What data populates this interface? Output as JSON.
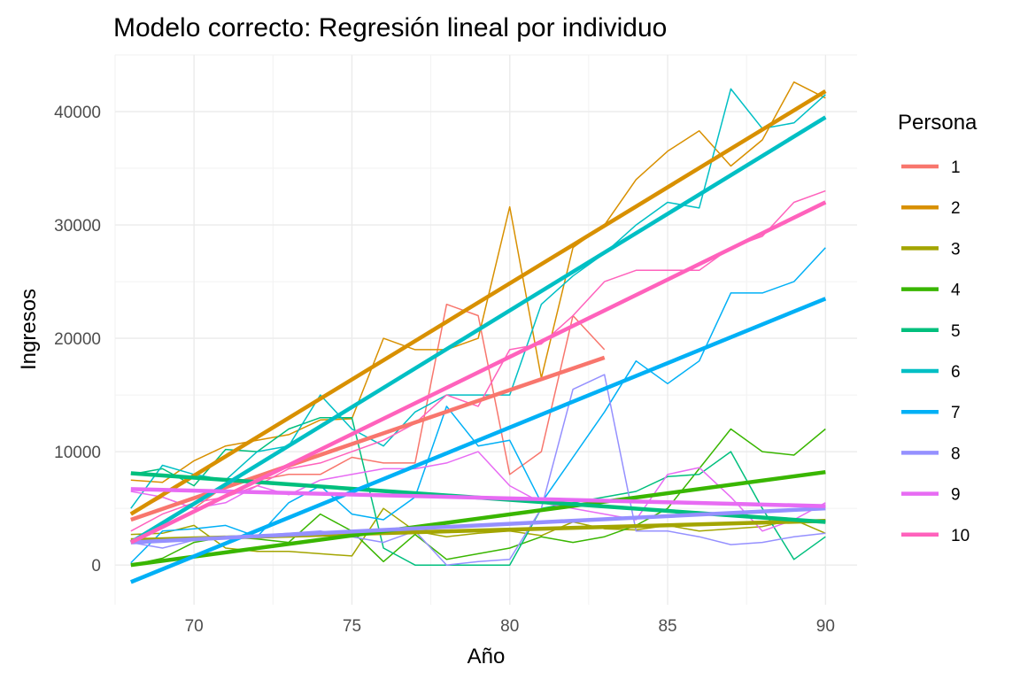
{
  "chart_data": {
    "type": "line",
    "title": "Modelo correcto: Regresión lineal por individuo",
    "xlabel": "Año",
    "ylabel": "Ingresos",
    "xlim": [
      67.5,
      91
    ],
    "ylim": [
      -3500,
      45000
    ],
    "x_ticks": [
      70,
      75,
      80,
      85,
      90
    ],
    "y_ticks": [
      0,
      10000,
      20000,
      30000,
      40000
    ],
    "grid": true,
    "legend": {
      "title": "Persona",
      "placement": "right"
    },
    "series": [
      {
        "name": "1",
        "color": "#F8766D",
        "x": [
          68,
          69,
          70,
          71,
          72,
          73,
          74,
          75,
          76,
          77,
          78,
          79,
          80,
          81,
          82,
          83
        ],
        "y": [
          4500,
          6000,
          5000,
          7000,
          7500,
          8000,
          8000,
          9500,
          9000,
          9000,
          23000,
          22000,
          8000,
          10000,
          22000,
          19000
        ],
        "fit": [
          [
            68,
            4000
          ],
          [
            83,
            18300
          ]
        ]
      },
      {
        "name": "2",
        "color": "#D89000",
        "x": [
          68,
          69,
          70,
          71,
          72,
          73,
          74,
          75,
          76,
          77,
          78,
          79,
          80,
          81,
          82,
          83,
          84,
          85,
          86,
          87,
          88,
          89,
          90
        ],
        "y": [
          7500,
          7300,
          9200,
          10500,
          11000,
          11500,
          12800,
          12900,
          20000,
          19000,
          19000,
          20000,
          31600,
          16500,
          28000,
          30000,
          34000,
          36500,
          38300,
          35200,
          37500,
          42600,
          41200
        ],
        "fit": [
          [
            68,
            4500
          ],
          [
            90,
            41800
          ]
        ]
      },
      {
        "name": "3",
        "color": "#A3A500",
        "x": [
          68,
          69,
          70,
          71,
          72,
          73,
          74,
          75,
          76,
          77,
          78,
          79,
          80,
          81,
          82,
          83,
          84,
          85,
          86,
          87,
          88,
          89,
          90
        ],
        "y": [
          2700,
          2800,
          3500,
          1500,
          1200,
          1200,
          1000,
          800,
          5000,
          3000,
          2500,
          2800,
          3000,
          2600,
          3800,
          3200,
          3100,
          3500,
          3000,
          3200,
          3400,
          4000,
          2800
        ],
        "fit": [
          [
            68,
            2200
          ],
          [
            90,
            3900
          ]
        ]
      },
      {
        "name": "4",
        "color": "#39B600",
        "x": [
          68,
          69,
          70,
          71,
          72,
          73,
          74,
          75,
          76,
          77,
          78,
          79,
          80,
          81,
          82,
          83,
          84,
          85,
          86,
          87,
          88,
          89,
          90
        ],
        "y": [
          0,
          600,
          2000,
          2500,
          2300,
          2000,
          4500,
          3000,
          300,
          2700,
          500,
          1000,
          1500,
          2500,
          2000,
          2500,
          3500,
          5000,
          8500,
          12000,
          10000,
          9700,
          12000
        ],
        "fit": [
          [
            68,
            0
          ],
          [
            90,
            8200
          ]
        ]
      },
      {
        "name": "5",
        "color": "#00BF7D",
        "x": [
          68,
          69,
          70,
          71,
          72,
          73,
          74,
          75,
          76,
          77,
          78,
          79,
          80,
          81,
          82,
          83,
          84,
          85,
          86,
          87,
          88,
          89,
          90
        ],
        "y": [
          8000,
          8500,
          7000,
          10200,
          10000,
          12000,
          13000,
          13000,
          1500,
          0,
          0,
          0,
          0,
          5000,
          5500,
          6000,
          6500,
          7800,
          8000,
          10000,
          5000,
          500,
          2500
        ],
        "fit": [
          [
            68,
            8100
          ],
          [
            90,
            3800
          ]
        ]
      },
      {
        "name": "6",
        "color": "#00BFC4",
        "x": [
          68,
          69,
          70,
          71,
          72,
          73,
          74,
          75,
          76,
          77,
          78,
          79,
          80,
          81,
          82,
          83,
          84,
          85,
          86,
          87,
          88,
          89,
          90
        ],
        "y": [
          5000,
          8800,
          8000,
          7500,
          10000,
          10500,
          15000,
          12000,
          10500,
          13500,
          15000,
          15000,
          15000,
          23000,
          25500,
          27500,
          30000,
          32000,
          31500,
          42000,
          38500,
          39000,
          41500
        ],
        "fit": [
          [
            68,
            2000
          ],
          [
            90,
            39500
          ]
        ]
      },
      {
        "name": "7",
        "color": "#00B0F6",
        "x": [
          68,
          69,
          70,
          71,
          72,
          73,
          74,
          75,
          76,
          77,
          78,
          79,
          80,
          81,
          82,
          83,
          84,
          85,
          86,
          87,
          88,
          89,
          90
        ],
        "y": [
          200,
          3000,
          3200,
          3500,
          2500,
          5500,
          7000,
          4500,
          4000,
          6000,
          14000,
          10500,
          11000,
          5500,
          9500,
          13500,
          18000,
          16000,
          18000,
          24000,
          24000,
          25000,
          28000
        ],
        "fit": [
          [
            68,
            -1500
          ],
          [
            90,
            23500
          ]
        ]
      },
      {
        "name": "8",
        "color": "#9590FF",
        "x": [
          68,
          69,
          70,
          71,
          72,
          73,
          74,
          75,
          76,
          77,
          78,
          79,
          80,
          81,
          82,
          83,
          84,
          85,
          86,
          87,
          88,
          89,
          90
        ],
        "y": [
          2000,
          1500,
          2200,
          2500,
          2600,
          2800,
          3000,
          2500,
          2000,
          3000,
          0,
          300,
          500,
          5000,
          15500,
          16800,
          3000,
          3000,
          2500,
          1800,
          2000,
          2500,
          2800
        ],
        "fit": [
          [
            68,
            2000
          ],
          [
            90,
            5000
          ]
        ]
      },
      {
        "name": "9",
        "color": "#E76BF3",
        "x": [
          68,
          69,
          70,
          71,
          72,
          73,
          74,
          75,
          76,
          77,
          78,
          79,
          80,
          81,
          82,
          83,
          84,
          85,
          86,
          87,
          88,
          89,
          90
        ],
        "y": [
          6500,
          6000,
          5000,
          5500,
          7000,
          6200,
          7500,
          8000,
          8500,
          8500,
          9000,
          10000,
          7000,
          5500,
          5000,
          4500,
          4000,
          8000,
          8600,
          6000,
          3000,
          4000,
          5500
        ],
        "fit": [
          [
            68,
            6700
          ],
          [
            90,
            5200
          ]
        ]
      },
      {
        "name": "10",
        "color": "#FF62BC",
        "x": [
          68,
          69,
          70,
          71,
          72,
          73,
          74,
          75,
          76,
          77,
          78,
          79,
          80,
          81,
          82,
          83,
          84,
          85,
          86,
          87,
          88,
          89,
          90
        ],
        "y": [
          3000,
          4500,
          5500,
          6000,
          7000,
          8500,
          9000,
          10000,
          11000,
          12500,
          15000,
          14000,
          19000,
          19500,
          22000,
          25000,
          26000,
          26000,
          26000,
          28000,
          29000,
          32000,
          33000
        ],
        "fit": [
          [
            68,
            2000
          ],
          [
            90,
            32000
          ]
        ]
      }
    ]
  }
}
